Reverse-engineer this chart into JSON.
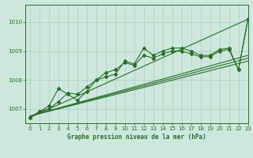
{
  "background_color": "#cce8dc",
  "grid_color": "#aacebb",
  "line_color": "#2d6e2d",
  "title": "Graphe pression niveau de la mer (hPa)",
  "xlim": [
    -0.5,
    23
  ],
  "ylim": [
    1006.5,
    1010.6
  ],
  "yticks": [
    1007,
    1008,
    1009,
    1010
  ],
  "xticks": [
    0,
    1,
    2,
    3,
    4,
    5,
    6,
    7,
    8,
    9,
    10,
    11,
    12,
    13,
    14,
    15,
    16,
    17,
    18,
    19,
    20,
    21,
    22,
    23
  ],
  "trend_lines": [
    [
      [
        0,
        23
      ],
      [
        1006.7,
        1010.1
      ]
    ],
    [
      [
        0,
        23
      ],
      [
        1006.75,
        1008.85
      ]
    ],
    [
      [
        0,
        23
      ],
      [
        1006.75,
        1008.75
      ]
    ],
    [
      [
        0,
        23
      ],
      [
        1006.75,
        1008.65
      ]
    ]
  ],
  "series_with_markers": [
    [
      1006.7,
      1006.9,
      1007.1,
      1007.7,
      1007.5,
      1007.3,
      1007.6,
      1008.0,
      1008.1,
      1008.2,
      1008.65,
      1008.55,
      1009.1,
      1008.85,
      1009.0,
      1009.1,
      1009.1,
      1009.0,
      1008.85,
      1008.85,
      1009.05,
      1009.1,
      1008.35,
      1010.1
    ],
    [
      1006.7,
      1006.9,
      1007.0,
      1007.25,
      1007.55,
      1007.5,
      1007.75,
      1008.0,
      1008.25,
      1008.35,
      1008.6,
      1008.5,
      1008.85,
      1008.75,
      1008.9,
      1009.0,
      1009.0,
      1008.9,
      1008.8,
      1008.8,
      1009.0,
      1009.05,
      1008.35,
      1010.1
    ]
  ]
}
